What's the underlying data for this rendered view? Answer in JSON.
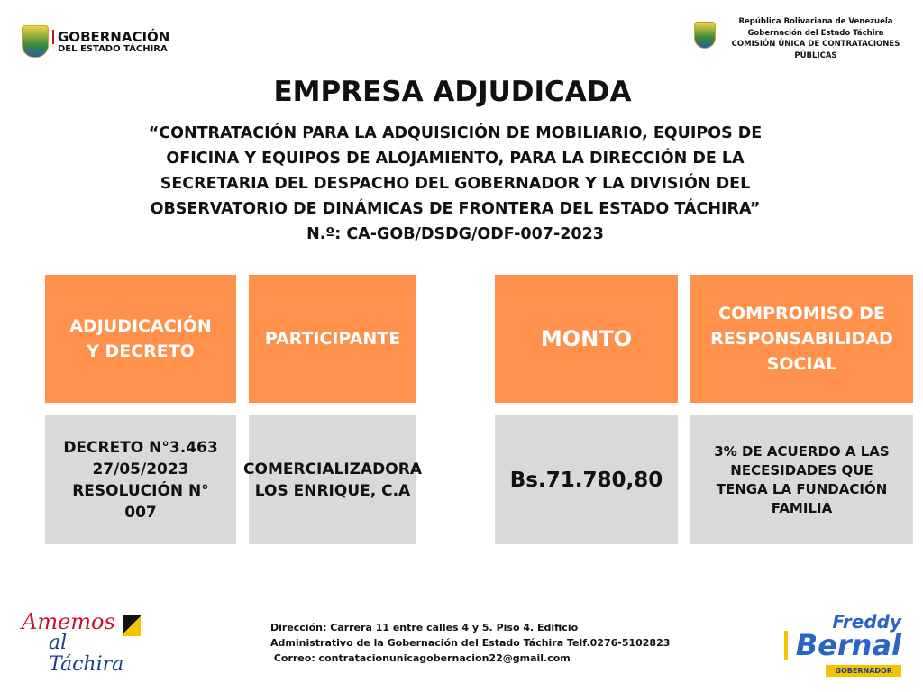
{
  "header": {
    "left_logo": {
      "line1": "GOBERNACIÓN",
      "line2": "DEL ESTADO TÁCHIRA"
    },
    "right_lines": [
      "República Bolivariana de   Venezuela",
      "Gobernación del Estado Táchira",
      "COMISIÓN ÚNICA DE CONTRATACIONES",
      "PÚBLICAS"
    ]
  },
  "title": "EMPRESA ADJUDICADA",
  "subtitle_lines": [
    "“CONTRATACIÓN PARA LA ADQUISICIÓN DE MOBILIARIO, EQUIPOS DE",
    "OFICINA Y EQUIPOS DE ALOJAMIENTO, PARA LA DIRECCIÓN DE LA",
    "SECRETARIA DEL DESPACHO DEL GOBERNADOR Y LA DIVISIÓN DEL",
    "OBSERVATORIO DE DINÁMICAS DE FRONTERA DEL ESTADO TÁCHIRA”",
    "N.º: CA-GOB/DSDG/ODF-007-2023"
  ],
  "table": {
    "headers": [
      [
        "ADJUDICACIÓN",
        "Y DECRETO"
      ],
      [
        "PARTICIPANTE"
      ],
      [
        "MONTO"
      ],
      [
        "COMPROMISO DE",
        "RESPONSABILIDAD",
        "SOCIAL"
      ]
    ],
    "values": [
      [
        "DECRETO N°3.463",
        "27/05/2023",
        "RESOLUCIÓN N°",
        "007"
      ],
      [
        "COMERCIALIZADORA",
        "LOS ENRIQUE, C.A"
      ],
      [
        "Bs.71.780,80"
      ],
      [
        "3% DE ACUERDO A LAS",
        "NECESIDADES QUE",
        "TENGA LA FUNDACIÓN",
        "FAMILIA"
      ]
    ]
  },
  "footer": {
    "slogan": {
      "line1": "Amemos",
      "line2": "al Táchira"
    },
    "address_lines": [
      "Dirección: Carrera 11 entre calles 4 y 5. Piso 4. Edificio",
      "Administrativo de la Gobernación del Estado Táchira Telf.0276-5102823",
      " Correo: contratacionunicagobernacion22@gmail.com"
    ],
    "governor_logo": {
      "line1": "Freddy",
      "line2": "Bernal",
      "line3": "GOBERNADOR"
    }
  },
  "colors": {
    "header_cell": "#ff914d",
    "value_cell": "#d9d9d9"
  }
}
